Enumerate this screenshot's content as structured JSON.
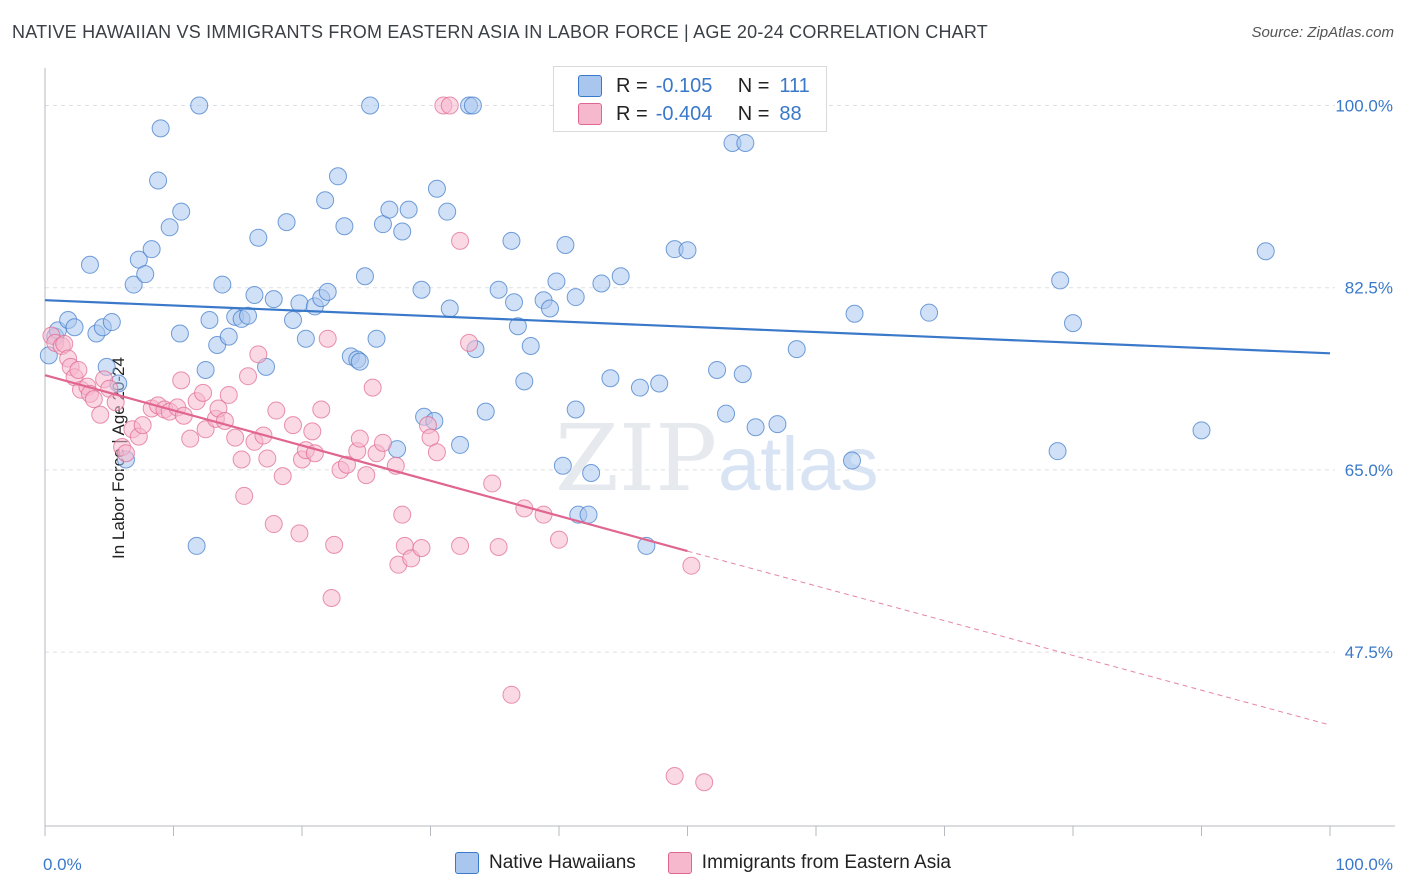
{
  "title": "NATIVE HAWAIIAN VS IMMIGRANTS FROM EASTERN ASIA IN LABOR FORCE | AGE 20-24 CORRELATION CHART",
  "source": "Source: ZipAtlas.com",
  "watermark": {
    "zip": "ZIP",
    "atlas": "atlas"
  },
  "legend": {
    "r_label": "R =",
    "n_label": "N =",
    "rows": [
      {
        "r": "-0.105",
        "n": "111",
        "color": "#a9c6ef"
      },
      {
        "r": "-0.404",
        "n": "88",
        "color": "#f6b8cd"
      }
    ]
  },
  "bottom_legend": [
    "Native Hawaiians",
    "Immigrants from Eastern Asia"
  ],
  "chart_data": {
    "type": "scatter",
    "title": "NATIVE HAWAIIAN VS IMMIGRANTS FROM EASTERN ASIA IN LABOR FORCE | AGE 20-24 CORRELATION CHART",
    "xlabel": "",
    "ylabel": "In Labor Force | Age 20-24",
    "xlim": [
      0,
      100
    ],
    "ylim": [
      30.8,
      103.6
    ],
    "x_tick_labels": [
      "0.0%",
      "100.0%"
    ],
    "y_ticks": [
      47.5,
      65.0,
      82.5,
      100.0
    ],
    "y_tick_labels": [
      "47.5%",
      "65.0%",
      "82.5%",
      "100.0%"
    ],
    "grid": true,
    "legend_position": "top-center",
    "series": [
      {
        "name": "Native Hawaiians",
        "color": "#3a78c9",
        "fill": "#a9c6ef",
        "r": -0.105,
        "n": 111,
        "trend": {
          "x": [
            0,
            100
          ],
          "y": [
            81.3,
            76.2
          ]
        },
        "points": [
          [
            0.3,
            76.0
          ],
          [
            0.8,
            77.8
          ],
          [
            1.0,
            78.4
          ],
          [
            1.8,
            79.4
          ],
          [
            2.3,
            78.7
          ],
          [
            3.5,
            84.7
          ],
          [
            4.0,
            78.1
          ],
          [
            4.5,
            78.7
          ],
          [
            4.8,
            74.9
          ],
          [
            5.2,
            79.2
          ],
          [
            5.7,
            73.3
          ],
          [
            6.3,
            66.0
          ],
          [
            6.9,
            82.8
          ],
          [
            7.3,
            85.2
          ],
          [
            7.8,
            83.8
          ],
          [
            8.3,
            86.2
          ],
          [
            8.8,
            92.8
          ],
          [
            9.0,
            97.8
          ],
          [
            9.7,
            88.3
          ],
          [
            10.5,
            78.1
          ],
          [
            10.6,
            89.8
          ],
          [
            11.8,
            57.7
          ],
          [
            12.0,
            100.0
          ],
          [
            12.5,
            74.6
          ],
          [
            12.8,
            79.4
          ],
          [
            13.4,
            77.0
          ],
          [
            13.8,
            82.8
          ],
          [
            14.3,
            77.8
          ],
          [
            14.8,
            79.7
          ],
          [
            15.3,
            79.5
          ],
          [
            15.8,
            79.8
          ],
          [
            16.3,
            81.8
          ],
          [
            16.6,
            87.3
          ],
          [
            17.2,
            74.9
          ],
          [
            17.8,
            81.4
          ],
          [
            18.8,
            88.8
          ],
          [
            19.3,
            79.4
          ],
          [
            19.8,
            81.0
          ],
          [
            20.3,
            77.6
          ],
          [
            21.0,
            80.7
          ],
          [
            21.5,
            81.5
          ],
          [
            21.8,
            90.9
          ],
          [
            22.0,
            82.1
          ],
          [
            22.8,
            93.2
          ],
          [
            23.3,
            88.4
          ],
          [
            23.8,
            75.9
          ],
          [
            24.3,
            75.6
          ],
          [
            24.5,
            75.4
          ],
          [
            24.9,
            83.6
          ],
          [
            25.3,
            100.0
          ],
          [
            25.8,
            77.6
          ],
          [
            26.3,
            88.6
          ],
          [
            26.8,
            90.0
          ],
          [
            27.4,
            67.0
          ],
          [
            27.8,
            87.9
          ],
          [
            28.3,
            90.0
          ],
          [
            29.3,
            82.3
          ],
          [
            29.5,
            70.1
          ],
          [
            30.3,
            69.7
          ],
          [
            30.5,
            92.0
          ],
          [
            31.3,
            89.8
          ],
          [
            31.5,
            80.5
          ],
          [
            32.3,
            67.4
          ],
          [
            33.0,
            100.0
          ],
          [
            33.3,
            100.0
          ],
          [
            33.5,
            76.6
          ],
          [
            34.3,
            70.6
          ],
          [
            35.3,
            82.3
          ],
          [
            36.3,
            87.0
          ],
          [
            36.5,
            81.1
          ],
          [
            36.8,
            78.8
          ],
          [
            37.3,
            73.5
          ],
          [
            37.8,
            76.9
          ],
          [
            38.8,
            81.3
          ],
          [
            39.3,
            80.5
          ],
          [
            39.8,
            83.1
          ],
          [
            40.3,
            65.4
          ],
          [
            40.5,
            86.6
          ],
          [
            41.3,
            70.8
          ],
          [
            41.3,
            81.6
          ],
          [
            41.5,
            60.7
          ],
          [
            42.3,
            60.7
          ],
          [
            42.5,
            64.7
          ],
          [
            43.3,
            82.9
          ],
          [
            44.0,
            73.8
          ],
          [
            44.8,
            83.6
          ],
          [
            46.3,
            72.9
          ],
          [
            46.8,
            57.7
          ],
          [
            47.8,
            73.3
          ],
          [
            48.3,
            100.0
          ],
          [
            49.0,
            86.2
          ],
          [
            50.0,
            86.1
          ],
          [
            52.3,
            74.6
          ],
          [
            53.0,
            70.4
          ],
          [
            53.5,
            96.4
          ],
          [
            54.3,
            74.2
          ],
          [
            54.5,
            96.4
          ],
          [
            55.3,
            69.1
          ],
          [
            56.5,
            100.0
          ],
          [
            56.8,
            98.6
          ],
          [
            57.0,
            69.4
          ],
          [
            58.0,
            98.4
          ],
          [
            58.5,
            76.6
          ],
          [
            62.8,
            65.9
          ],
          [
            63.0,
            80.0
          ],
          [
            68.8,
            80.1
          ],
          [
            78.8,
            66.8
          ],
          [
            79.0,
            83.2
          ],
          [
            80.0,
            79.1
          ],
          [
            90.0,
            68.8
          ],
          [
            95.0,
            86.0
          ]
        ]
      },
      {
        "name": "Immigrants from Eastern Asia",
        "color": "#e0668f",
        "fill": "#f6b8cd",
        "r": -0.404,
        "n": 88,
        "trend": {
          "x": [
            0,
            50
          ],
          "y": [
            74.1,
            57.2
          ]
        },
        "trend_dashed": {
          "x": [
            50,
            100
          ],
          "y": [
            57.2,
            40.5
          ]
        },
        "points": [
          [
            0.5,
            77.9
          ],
          [
            0.8,
            77.2
          ],
          [
            1.3,
            76.9
          ],
          [
            1.5,
            77.1
          ],
          [
            1.8,
            75.7
          ],
          [
            2.0,
            74.9
          ],
          [
            2.3,
            73.9
          ],
          [
            2.6,
            74.6
          ],
          [
            2.8,
            72.7
          ],
          [
            3.3,
            73.0
          ],
          [
            3.5,
            72.3
          ],
          [
            3.8,
            71.8
          ],
          [
            4.3,
            70.3
          ],
          [
            4.6,
            73.7
          ],
          [
            5.0,
            72.8
          ],
          [
            5.5,
            71.5
          ],
          [
            6.0,
            67.2
          ],
          [
            6.3,
            66.6
          ],
          [
            6.8,
            68.9
          ],
          [
            7.3,
            68.2
          ],
          [
            7.6,
            69.3
          ],
          [
            8.3,
            70.9
          ],
          [
            8.8,
            71.2
          ],
          [
            9.3,
            70.8
          ],
          [
            9.7,
            70.6
          ],
          [
            10.3,
            71.0
          ],
          [
            10.6,
            73.6
          ],
          [
            10.8,
            70.2
          ],
          [
            11.3,
            68.0
          ],
          [
            11.8,
            71.6
          ],
          [
            12.3,
            72.4
          ],
          [
            12.5,
            68.9
          ],
          [
            13.3,
            69.9
          ],
          [
            13.5,
            70.9
          ],
          [
            14.0,
            69.7
          ],
          [
            14.3,
            72.2
          ],
          [
            14.8,
            68.1
          ],
          [
            15.3,
            66.0
          ],
          [
            15.5,
            62.5
          ],
          [
            15.8,
            74.0
          ],
          [
            16.3,
            67.7
          ],
          [
            16.6,
            76.1
          ],
          [
            17.0,
            68.3
          ],
          [
            17.3,
            66.1
          ],
          [
            17.8,
            59.8
          ],
          [
            18.0,
            70.7
          ],
          [
            18.5,
            64.4
          ],
          [
            19.3,
            69.3
          ],
          [
            19.8,
            58.9
          ],
          [
            20.0,
            66.0
          ],
          [
            20.3,
            66.9
          ],
          [
            20.8,
            68.7
          ],
          [
            21.0,
            66.6
          ],
          [
            21.5,
            70.8
          ],
          [
            22.0,
            77.6
          ],
          [
            22.3,
            52.7
          ],
          [
            22.5,
            57.8
          ],
          [
            23.0,
            65.0
          ],
          [
            23.5,
            65.5
          ],
          [
            24.3,
            66.8
          ],
          [
            24.5,
            68.0
          ],
          [
            25.0,
            64.5
          ],
          [
            25.5,
            72.9
          ],
          [
            25.8,
            66.6
          ],
          [
            26.3,
            67.6
          ],
          [
            27.3,
            65.4
          ],
          [
            27.5,
            55.9
          ],
          [
            27.8,
            60.7
          ],
          [
            28.0,
            57.7
          ],
          [
            28.5,
            56.5
          ],
          [
            29.3,
            57.5
          ],
          [
            29.8,
            69.3
          ],
          [
            30.0,
            68.1
          ],
          [
            30.5,
            66.7
          ],
          [
            31.0,
            100.0
          ],
          [
            31.5,
            100.0
          ],
          [
            32.3,
            87.0
          ],
          [
            32.3,
            57.7
          ],
          [
            33.0,
            77.2
          ],
          [
            34.8,
            63.7
          ],
          [
            35.3,
            57.6
          ],
          [
            36.3,
            43.4
          ],
          [
            37.3,
            61.3
          ],
          [
            38.8,
            60.7
          ],
          [
            40.0,
            58.3
          ],
          [
            49.0,
            35.6
          ],
          [
            50.3,
            55.8
          ],
          [
            51.3,
            35.0
          ]
        ]
      }
    ]
  }
}
